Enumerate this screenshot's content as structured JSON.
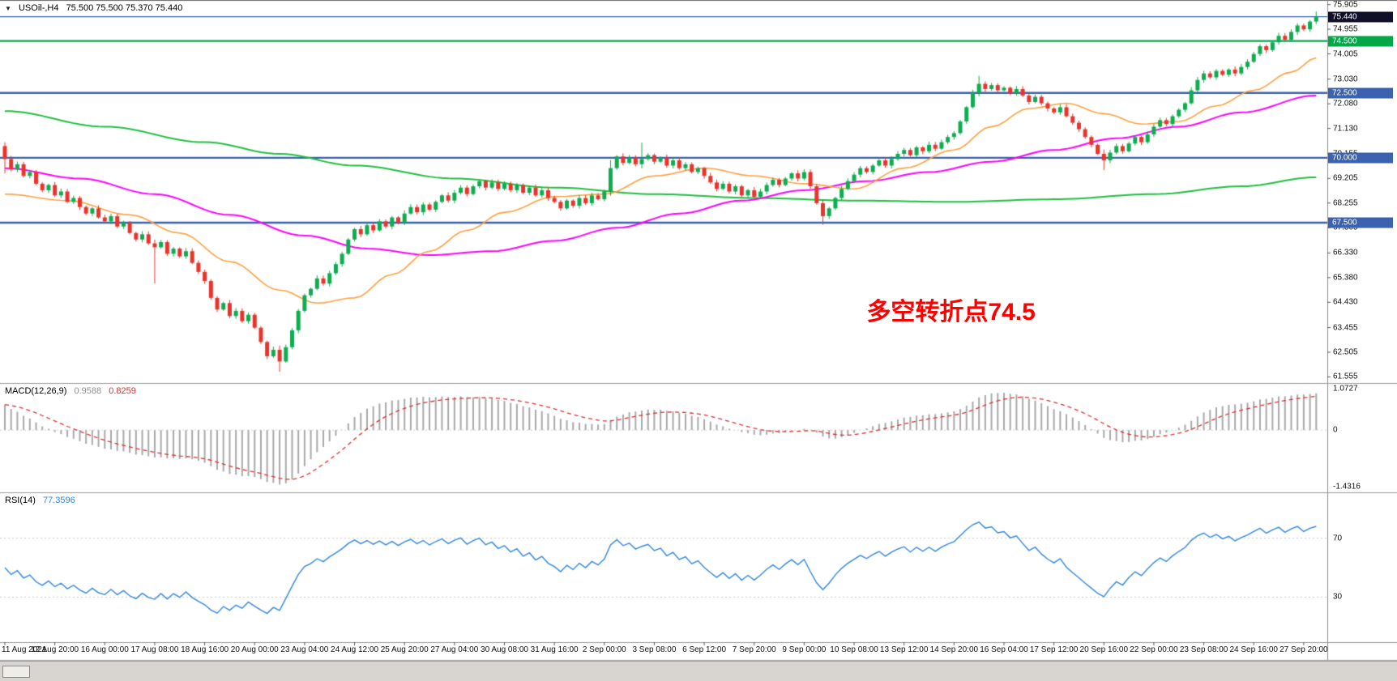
{
  "header": {
    "triangle_icon": "▼"
  },
  "chart_data": [
    {
      "type": "candlestick",
      "symbol": "USOil-",
      "timeframe": "H4",
      "title": "USOil-,H4",
      "quote": "75.500 75.500 75.370 75.440",
      "y_range": [
        61.35,
        76.05
      ],
      "y_ticks": [
        "75.905",
        "74.955",
        "74.005",
        "73.030",
        "72.080",
        "71.130",
        "70.155",
        "69.205",
        "68.255",
        "67.305",
        "66.330",
        "65.380",
        "64.430",
        "63.455",
        "62.505",
        "61.555"
      ],
      "levels": [
        {
          "label": "75.440",
          "price": 75.44,
          "line_color": "#3a62ae",
          "box_color": "#101028",
          "line_width": 1.2
        },
        {
          "label": "74.500",
          "price": 74.5,
          "line_color": "#00a848",
          "box_color": "#00a848",
          "line_width": 2.4
        },
        {
          "label": "72.500",
          "price": 72.5,
          "line_color": "#3a62ae",
          "box_color": "#3a62ae",
          "line_width": 2.4
        },
        {
          "label": "70.000",
          "price": 70.0,
          "line_color": "#3a62ae",
          "box_color": "#3a62ae",
          "line_width": 2.4
        },
        {
          "label": "67.500",
          "price": 67.5,
          "line_color": "#3a62ae",
          "box_color": "#3a62ae",
          "line_width": 2.4
        }
      ],
      "colors": {
        "up": "#0fac50",
        "down": "#e8342c"
      },
      "open_first": 70.45,
      "closes": [
        69.95,
        69.55,
        69.75,
        69.3,
        69.45,
        69.0,
        68.75,
        68.95,
        68.55,
        68.7,
        68.3,
        68.45,
        68.1,
        67.85,
        68.05,
        67.7,
        67.55,
        67.75,
        67.35,
        67.5,
        67.1,
        66.85,
        67.05,
        66.7,
        66.55,
        66.75,
        66.3,
        66.5,
        66.2,
        66.4,
        65.95,
        65.6,
        65.25,
        64.6,
        64.15,
        64.4,
        63.9,
        64.1,
        63.7,
        63.95,
        63.45,
        62.9,
        62.35,
        62.6,
        62.15,
        62.7,
        63.35,
        64.1,
        64.7,
        64.95,
        65.35,
        65.15,
        65.55,
        65.9,
        66.3,
        66.85,
        67.25,
        67.05,
        67.4,
        67.2,
        67.55,
        67.35,
        67.7,
        67.5,
        67.85,
        68.1,
        67.9,
        68.2,
        68.0,
        68.3,
        68.55,
        68.35,
        68.65,
        68.85,
        68.6,
        68.9,
        69.1,
        68.85,
        69.05,
        68.8,
        69.0,
        68.75,
        68.95,
        68.65,
        68.85,
        68.55,
        68.75,
        68.45,
        68.3,
        68.05,
        68.35,
        68.15,
        68.45,
        68.25,
        68.55,
        68.4,
        68.7,
        69.6,
        70.05,
        69.8,
        70.0,
        69.75,
        69.95,
        70.1,
        69.85,
        70.0,
        69.7,
        69.9,
        69.6,
        69.75,
        69.45,
        69.6,
        69.3,
        69.05,
        68.8,
        69.0,
        68.7,
        68.9,
        68.55,
        68.75,
        68.5,
        68.7,
        68.95,
        69.15,
        68.95,
        69.2,
        69.4,
        69.2,
        69.45,
        68.9,
        68.25,
        67.75,
        68.05,
        68.45,
        68.8,
        69.1,
        69.35,
        69.6,
        69.45,
        69.7,
        69.9,
        69.7,
        69.95,
        70.15,
        70.3,
        70.1,
        70.4,
        70.25,
        70.5,
        70.35,
        70.6,
        70.8,
        70.95,
        71.4,
        71.95,
        72.5,
        72.85,
        72.65,
        72.8,
        72.6,
        72.7,
        72.5,
        72.65,
        72.4,
        72.15,
        72.35,
        72.1,
        71.9,
        71.75,
        71.95,
        71.6,
        71.35,
        71.1,
        70.8,
        70.5,
        70.15,
        69.9,
        70.2,
        70.45,
        70.25,
        70.55,
        70.8,
        70.6,
        70.9,
        71.2,
        71.45,
        71.3,
        71.6,
        71.85,
        72.1,
        72.6,
        73.0,
        73.25,
        73.1,
        73.35,
        73.2,
        73.4,
        73.25,
        73.5,
        73.7,
        74.0,
        74.3,
        74.15,
        74.45,
        74.7,
        74.55,
        74.85,
        75.1,
        74.95,
        75.25,
        75.44
      ],
      "extra_wicks": {
        "0": [
          0.1,
          0.5
        ],
        "24": [
          0.05,
          1.3
        ],
        "44": [
          0.05,
          0.3
        ],
        "97": [
          0.25,
          0.05
        ],
        "102": [
          0.55,
          0.05
        ],
        "131": [
          0.05,
          0.25
        ],
        "156": [
          0.2,
          0.05
        ],
        "176": [
          0.05,
          0.3
        ],
        "210": [
          0.15,
          0.05
        ]
      },
      "moving_averages": [
        {
          "name": "ma-slow",
          "color": "#1fbf3f",
          "width": 2,
          "anchors": [
            [
              0,
              71.8
            ],
            [
              16,
              71.2
            ],
            [
              32,
              70.6
            ],
            [
              44,
              70.15
            ],
            [
              56,
              69.7
            ],
            [
              72,
              69.2
            ],
            [
              88,
              68.85
            ],
            [
              104,
              68.6
            ],
            [
              120,
              68.45
            ],
            [
              136,
              68.35
            ],
            [
              152,
              68.3
            ],
            [
              168,
              68.4
            ],
            [
              184,
              68.6
            ],
            [
              198,
              68.9
            ],
            [
              210,
              69.25
            ]
          ]
        },
        {
          "name": "ma-mid",
          "color": "#ff00ff",
          "width": 2,
          "anchors": [
            [
              0,
              69.6
            ],
            [
              12,
              69.2
            ],
            [
              24,
              68.6
            ],
            [
              36,
              67.8
            ],
            [
              48,
              67.0
            ],
            [
              58,
              66.5
            ],
            [
              68,
              66.25
            ],
            [
              78,
              66.4
            ],
            [
              88,
              66.8
            ],
            [
              98,
              67.3
            ],
            [
              108,
              67.85
            ],
            [
              118,
              68.35
            ],
            [
              128,
              68.75
            ],
            [
              138,
              69.1
            ],
            [
              148,
              69.45
            ],
            [
              158,
              69.85
            ],
            [
              168,
              70.3
            ],
            [
              178,
              70.75
            ],
            [
              188,
              71.2
            ],
            [
              198,
              71.75
            ],
            [
              210,
              72.4
            ]
          ]
        },
        {
          "name": "ma-fast",
          "color": "#ffa040",
          "width": 1.6,
          "anchors": [
            [
              0,
              68.6
            ],
            [
              10,
              68.35
            ],
            [
              20,
              67.8
            ],
            [
              28,
              67.1
            ],
            [
              36,
              66.0
            ],
            [
              44,
              64.9
            ],
            [
              50,
              64.4
            ],
            [
              56,
              64.6
            ],
            [
              62,
              65.5
            ],
            [
              68,
              66.4
            ],
            [
              74,
              67.2
            ],
            [
              80,
              67.9
            ],
            [
              88,
              68.5
            ],
            [
              96,
              68.6
            ],
            [
              104,
              69.3
            ],
            [
              112,
              69.6
            ],
            [
              120,
              69.3
            ],
            [
              128,
              69.0
            ],
            [
              136,
              68.8
            ],
            [
              144,
              69.6
            ],
            [
              152,
              70.3
            ],
            [
              158,
              71.2
            ],
            [
              164,
              71.9
            ],
            [
              170,
              72.1
            ],
            [
              176,
              71.7
            ],
            [
              182,
              71.3
            ],
            [
              188,
              71.4
            ],
            [
              194,
              72.0
            ],
            [
              200,
              72.6
            ],
            [
              206,
              73.3
            ],
            [
              210,
              73.85
            ]
          ]
        }
      ],
      "x_labels": [
        "11 Aug 2021",
        "12 Aug 20:00",
        "16 Aug 00:00",
        "17 Aug 08:00",
        "18 Aug 16:00",
        "20 Aug 00:00",
        "23 Aug 04:00",
        "24 Aug 12:00",
        "25 Aug 20:00",
        "27 Aug 04:00",
        "30 Aug 08:00",
        "31 Aug 16:00",
        "2 Sep 00:00",
        "3 Sep 08:00",
        "6 Sep 12:00",
        "7 Sep 20:00",
        "9 Sep 00:00",
        "10 Sep 08:00",
        "13 Sep 12:00",
        "14 Sep 20:00",
        "16 Sep 04:00",
        "17 Sep 12:00",
        "20 Sep 16:00",
        "22 Sep 00:00",
        "23 Sep 08:00",
        "24 Sep 16:00",
        "27 Sep 20:00"
      ],
      "bars_per_label": 8,
      "annotation": {
        "text": "多空转折点74.5",
        "color": "#ff0000",
        "bar_index": 138,
        "price": 64.85
      }
    },
    {
      "type": "macd",
      "name": "MACD(12,26,9)",
      "value_main": "0.9588",
      "value_signal": "0.8259",
      "params": [
        12,
        26,
        9
      ],
      "ylim": [
        -1.4316,
        1.0727
      ],
      "axis_labels": [
        {
          "label": "1.0727",
          "value": 1.0727
        },
        {
          "label": "0",
          "value": 0
        },
        {
          "label": "-1.4316",
          "value": -1.4316
        }
      ],
      "seed_offsets": [
        0.3,
        -0.3
      ],
      "colors": {
        "histogram": "#a8a8a8",
        "signal": "#d93030"
      }
    },
    {
      "type": "rsi-line",
      "name": "RSI(14)",
      "value": "77.3596",
      "period": 14,
      "ylim": [
        0,
        100
      ],
      "levels": [
        70,
        30
      ],
      "axis_labels": [
        {
          "label": "70",
          "value": 70
        },
        {
          "label": "30",
          "value": 30
        }
      ],
      "color": "#2e86e0"
    }
  ]
}
